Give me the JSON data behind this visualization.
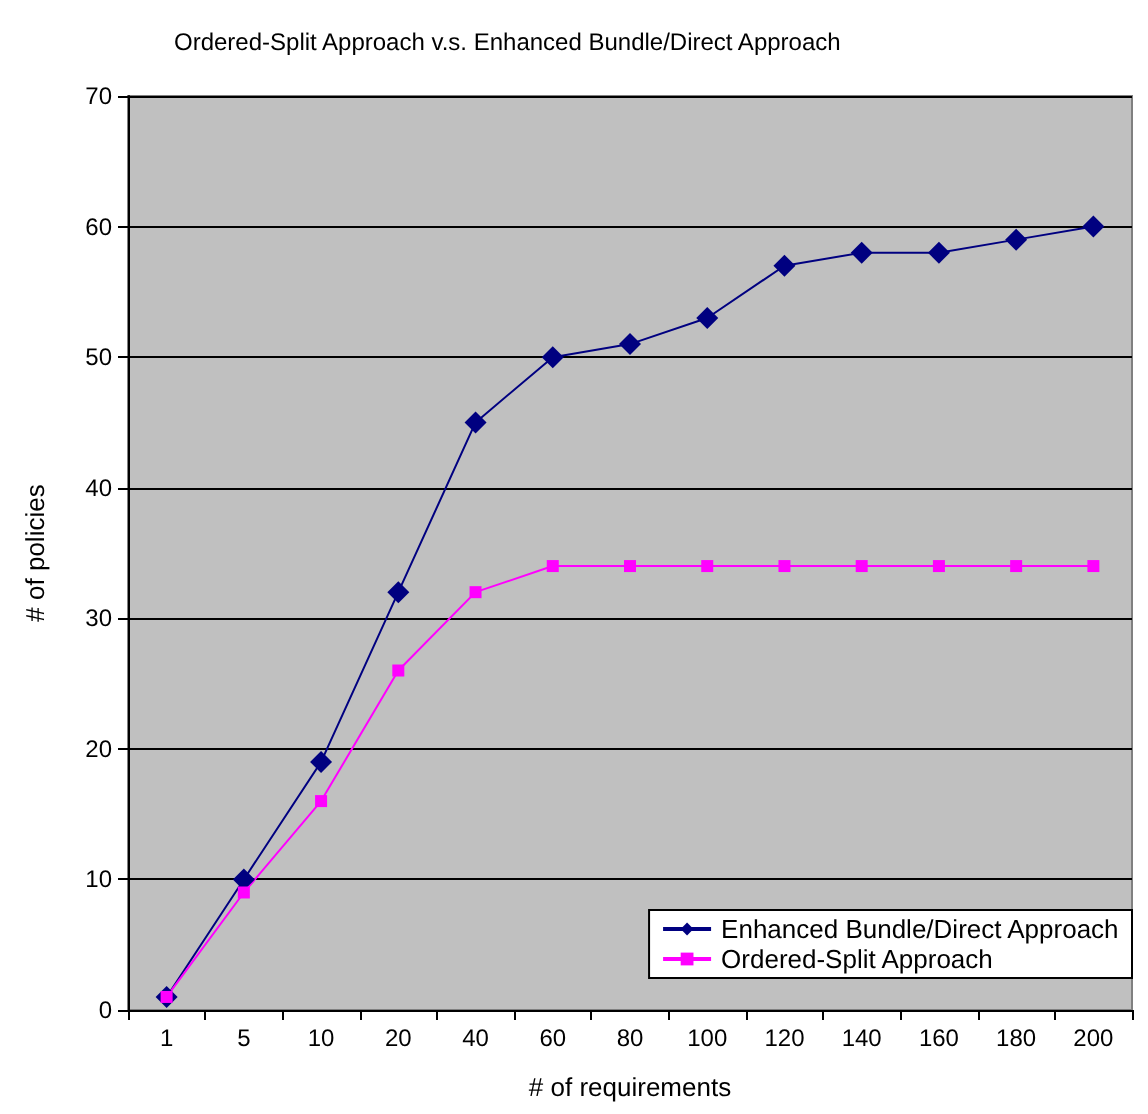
{
  "chart_data": {
    "type": "line",
    "title": "Ordered-Split Approach v.s. Enhanced Bundle/Direct Approach",
    "xlabel": "# of requirements",
    "ylabel": "# of policies",
    "categories": [
      "1",
      "5",
      "10",
      "20",
      "40",
      "60",
      "80",
      "100",
      "120",
      "140",
      "160",
      "180",
      "200"
    ],
    "series": [
      {
        "name": "Enhanced Bundle/Direct Approach",
        "color": "#000080",
        "marker": "diamond",
        "values": [
          1,
          10,
          19,
          32,
          45,
          50,
          51,
          53,
          57,
          58,
          58,
          59,
          60
        ]
      },
      {
        "name": "Ordered-Split Approach",
        "color": "#ff00ff",
        "marker": "square",
        "values": [
          1,
          9,
          16,
          26,
          32,
          34,
          34,
          34,
          34,
          34,
          34,
          34,
          34
        ]
      }
    ],
    "ylim": [
      0,
      70
    ],
    "yticks": [
      0,
      10,
      20,
      30,
      40,
      50,
      60,
      70
    ],
    "grid": "y",
    "legend": "bottom right"
  }
}
